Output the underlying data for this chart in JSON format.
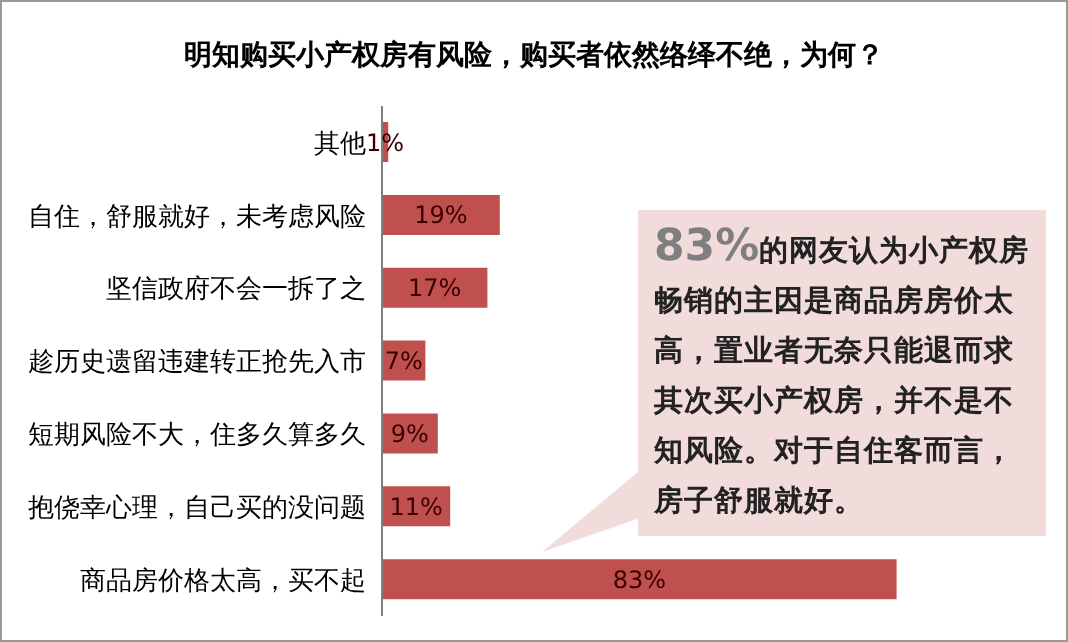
{
  "chart_data": {
    "type": "bar",
    "orientation": "horizontal",
    "title": "明知购买小产权房有风险，购买者依然络绎不绝，为何？",
    "categories": [
      "其他",
      "自住，舒服就好，未考虑风险",
      "坚信政府不会一拆了之",
      "趁历史遗留违建转正抢先入市",
      "短期风险不大，住多久算多久",
      "抱侥幸心理，自己买的没问题",
      "商品房价格太高，买不起"
    ],
    "values": [
      1,
      19,
      17,
      7,
      9,
      11,
      83
    ],
    "value_labels": [
      "1%",
      "19%",
      "17%",
      "7%",
      "9%",
      "11%",
      "83%"
    ],
    "color": "#c0504d",
    "tick_labels": "y",
    "annotations": [
      "83%的网友认为小产权房畅销的主因是商品房房价太高，置业者无奈只能退而求其次买小产权房，并不是不知风险。对于自住客而言，房子舒服就好。"
    ]
  }
}
